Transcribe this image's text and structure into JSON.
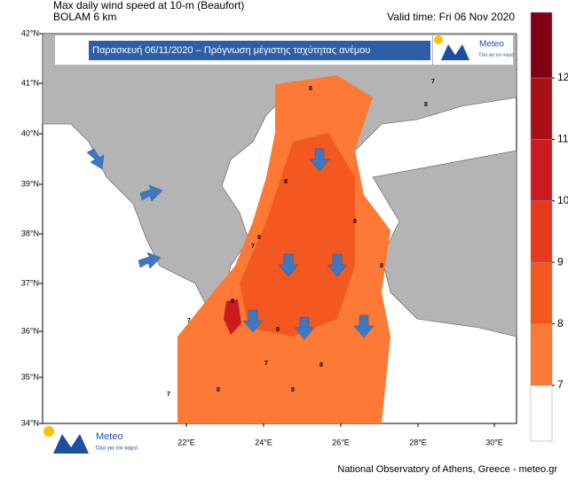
{
  "header": {
    "title": "Max daily wind speed at 10-m (Beaufort)",
    "model": "BOLAM 6 km",
    "valid_time": "Valid time: Fri 06 Nov 2020"
  },
  "banner": {
    "text": "Παρασκευή 06/11/2020 – Πρόγνωση μέγιστης ταχύτητας ανέμου",
    "logo": "Meteo",
    "logo_sub": "Όλα για τον καιρό"
  },
  "axes": {
    "lat_labels": [
      "42°N",
      "41°N",
      "40°N",
      "39°N",
      "38°N",
      "37°N",
      "36°N",
      "35°N",
      "34°N"
    ],
    "lon_labels": [
      "22°E",
      "24°E",
      "26°E",
      "28°E",
      "30°E"
    ]
  },
  "colorbar": {
    "levels": [
      7,
      8,
      9,
      10,
      11,
      12
    ],
    "colors": [
      "#ffffff",
      "#fc7a35",
      "#f2581f",
      "#e63a1e",
      "#cb1b1e",
      "#a50f15",
      "#7f0015"
    ]
  },
  "contour_labels": [
    "7",
    "8",
    "8",
    "8",
    "8",
    "8",
    "7",
    "8",
    "8",
    "7",
    "8",
    "7",
    "8",
    "8",
    "7",
    "8"
  ],
  "footer": {
    "logo": "Meteo",
    "logo_sub": "Όλα για τον καιρό",
    "credit": "National Observatory of Athens, Greece - meteo.gr"
  }
}
